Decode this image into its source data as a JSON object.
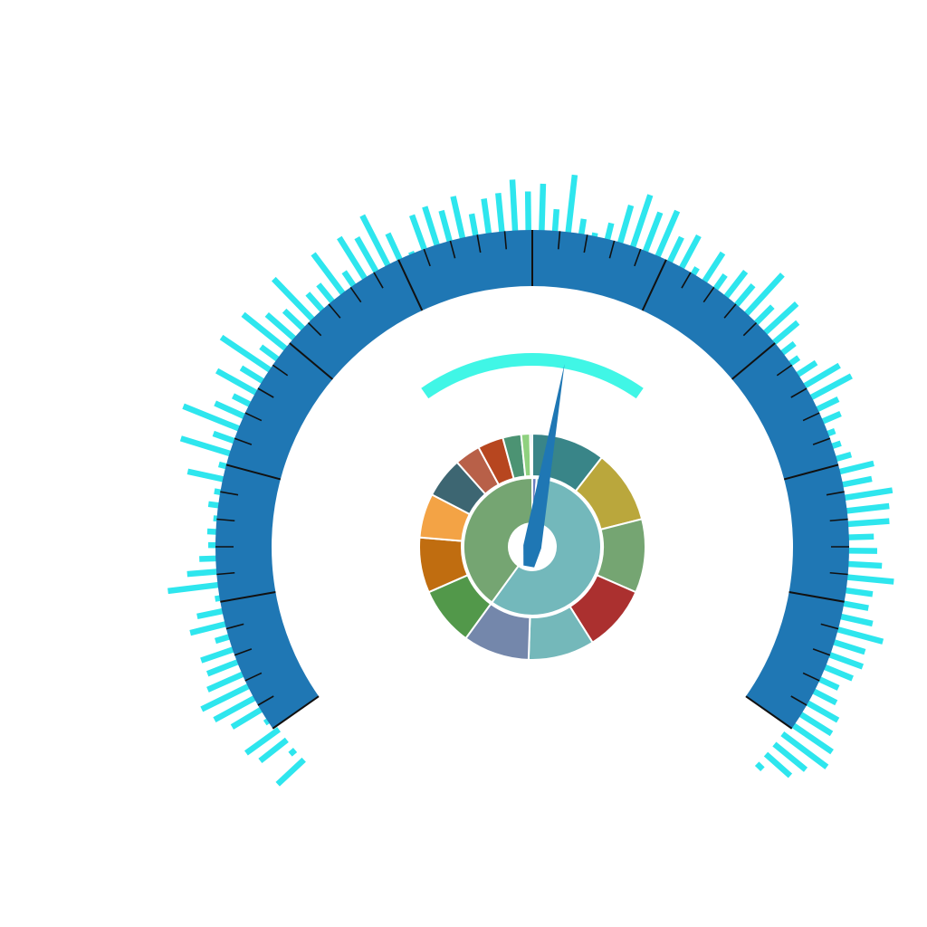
{
  "chart_data": [
    {
      "type": "gauge",
      "min": 0,
      "max": 100,
      "value": 54,
      "major_tick_count": 10,
      "minor_ticks_per_major": 4,
      "axis_color": "#1f77b4",
      "pointer_color": "#1f77b4",
      "progress_color": "#40f6e6",
      "progress_start": 36,
      "progress_end": 64
    },
    {
      "type": "sunburst",
      "inner_ring": [
        {
          "value": 1,
          "color": "#6a7fc0"
        },
        {
          "value": 59,
          "color": "#73b8bb"
        },
        {
          "value": 40,
          "color": "#75a572"
        }
      ],
      "outer_ring": [
        {
          "value": 10,
          "color": "#398588"
        },
        {
          "value": 10,
          "color": "#baa73c"
        },
        {
          "value": 10,
          "color": "#75a572"
        },
        {
          "value": 9,
          "color": "#ab302f"
        },
        {
          "value": 9,
          "color": "#74b8ba"
        },
        {
          "value": 9,
          "color": "#7487ab"
        },
        {
          "value": 8,
          "color": "#52984a"
        },
        {
          "value": 7.5,
          "color": "#c06d10"
        },
        {
          "value": 6,
          "color": "#f3a345"
        },
        {
          "value": 5.5,
          "color": "#3d6672"
        },
        {
          "value": 3.5,
          "color": "#b86048"
        },
        {
          "value": 3.5,
          "color": "#b7461f"
        },
        {
          "value": 2.5,
          "color": "#4c9373"
        },
        {
          "value": 1.2,
          "color": "#8fd17f"
        },
        {
          "value": 0.3,
          "color": "#b8d5e8"
        }
      ]
    },
    {
      "type": "radial-bar",
      "color": "#2ee6ee",
      "start_angle_deg": 227,
      "end_angle_deg": 494,
      "values": [
        0.55,
        0.1,
        0.52,
        0.62,
        0.12,
        0.58,
        0.76,
        0.86,
        0.65,
        0.56,
        0.58,
        0.28,
        0.62,
        0.46,
        0.14,
        0.84,
        0.52,
        0.32,
        0.18,
        0.2,
        0.12,
        0.22,
        0.16,
        0.62,
        0.18,
        0.85,
        0.4,
        0.98,
        0.55,
        0.35,
        0.75,
        0.45,
        0.96,
        0.38,
        0.9,
        0.62,
        0.46,
        0.92,
        0.4,
        0.4,
        0.82,
        0.32,
        0.8,
        0.66,
        0.92,
        0.5,
        0.1,
        0.62,
        0.68,
        0.55,
        0.72,
        0.4,
        0.6,
        0.66,
        0.85,
        0.66,
        0.78,
        0.4,
        0.95,
        0.3,
        0.12,
        0.32,
        0.66,
        0.9,
        0.7,
        0.82,
        0.48,
        0.62,
        0.18,
        0.58,
        0.32,
        0.55,
        0.46,
        0.88,
        0.42,
        0.72,
        0.54,
        0.3,
        0.22,
        0.4,
        0.68,
        0.76,
        0.42,
        0.36,
        0.18,
        0.2,
        0.3,
        0.6,
        0.52,
        0.8,
        0.72,
        0.7,
        0.45,
        0.5,
        0.58,
        0.78,
        0.48,
        0.45,
        0.56,
        0.78,
        0.56,
        0.6,
        0.52,
        0.38,
        0.45,
        0.6,
        0.62,
        0.78,
        0.85,
        0.62,
        0.5,
        0.12
      ]
    }
  ]
}
